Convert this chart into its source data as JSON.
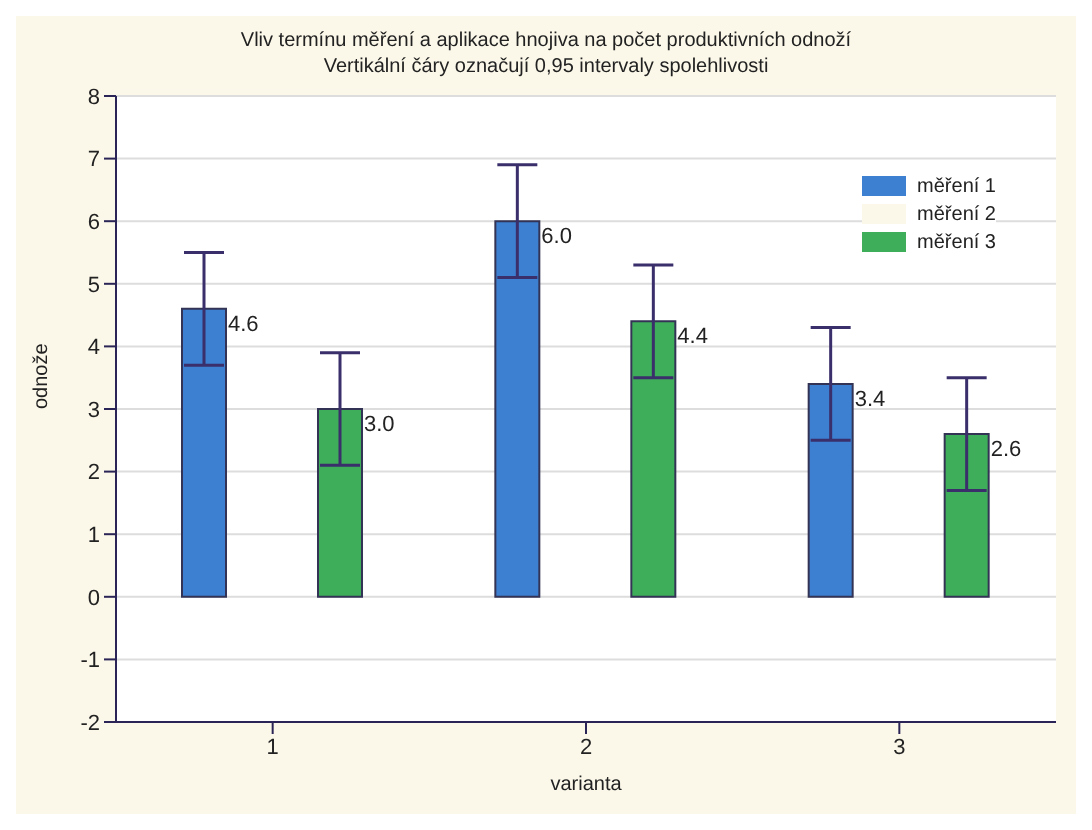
{
  "chart_data": {
    "type": "bar",
    "title": "Vliv termínu měření a aplikace hnojiva na počet produktivních odnoží",
    "subtitle": "Vertikální čáry označují 0,95 intervaly spolehlivosti",
    "xlabel": "varianta",
    "ylabel": "odnože",
    "categories": [
      "1",
      "2",
      "3"
    ],
    "series": [
      {
        "name": "měření 1",
        "color": "#3d7fd0",
        "values": [
          4.6,
          6.0,
          3.4
        ],
        "errors": [
          [
            3.7,
            5.5
          ],
          [
            5.1,
            6.9
          ],
          [
            2.5,
            4.3
          ]
        ],
        "value_labels": [
          "4.6",
          "6.0",
          "3.4"
        ]
      },
      {
        "name": "měření 2",
        "color": "#fbf8e9",
        "values": [
          null,
          null,
          null
        ]
      },
      {
        "name": "měření 3",
        "color": "#3fae5a",
        "values": [
          3.0,
          4.4,
          2.6
        ],
        "errors": [
          [
            2.1,
            3.9
          ],
          [
            3.5,
            5.3
          ],
          [
            1.7,
            3.5
          ]
        ],
        "value_labels": [
          "3.0",
          "4.4",
          "2.6"
        ]
      }
    ],
    "ylim": [
      -2,
      8
    ],
    "yticks": [
      -2,
      -1,
      0,
      1,
      2,
      3,
      4,
      5,
      6,
      7,
      8
    ],
    "grid": "y",
    "legend": "top right"
  }
}
